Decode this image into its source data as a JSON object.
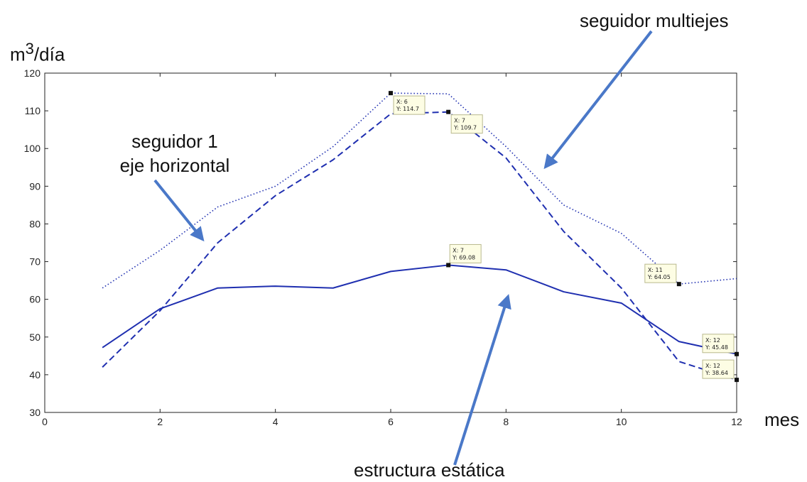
{
  "chart_data": {
    "type": "line",
    "ylabel_base": "m",
    "ylabel_sup": "3",
    "ylabel_rest": "/día",
    "xlabel": "mes",
    "xlim": [
      0,
      12
    ],
    "ylim": [
      30,
      120
    ],
    "xticks": [
      0,
      2,
      4,
      6,
      8,
      10,
      12
    ],
    "yticks": [
      30,
      40,
      50,
      60,
      70,
      80,
      90,
      100,
      110,
      120
    ],
    "grid": false,
    "series": [
      {
        "style": "dotted",
        "x": [
          1,
          2,
          3,
          4,
          5,
          6,
          7,
          8,
          9,
          10,
          11,
          12
        ],
        "y": [
          63,
          73,
          84.5,
          90,
          100.5,
          114.7,
          114.5,
          100.5,
          85,
          77.5,
          64.05,
          65.5
        ]
      },
      {
        "style": "dashed",
        "x": [
          1,
          2,
          3,
          4,
          5,
          6,
          7,
          8,
          9,
          10,
          11,
          12
        ],
        "y": [
          42,
          57,
          75,
          87.5,
          97,
          109.2,
          109.7,
          97.5,
          78,
          63,
          43.5,
          38.64
        ]
      },
      {
        "style": "solid",
        "x": [
          1,
          2,
          3,
          4,
          5,
          6,
          7,
          8,
          9,
          10,
          11,
          12
        ],
        "y": [
          47.2,
          57.5,
          63,
          63.5,
          63,
          67.4,
          69.08,
          67.8,
          62,
          59,
          48.8,
          45.48
        ]
      }
    ],
    "datatips": [
      {
        "x": 6,
        "y": 114.7,
        "line1": "X: 6",
        "line2": "Y: 114.7",
        "side": "right"
      },
      {
        "x": 7,
        "y": 109.7,
        "line1": "X: 7",
        "line2": "Y: 109.7",
        "side": "right"
      },
      {
        "x": 7,
        "y": 69.08,
        "line1": "X: 7",
        "line2": "Y: 69.08",
        "side": "right-up"
      },
      {
        "x": 11,
        "y": 64.05,
        "line1": "X: 11",
        "line2": "Y: 64.05",
        "side": "left-up"
      },
      {
        "x": 12,
        "y": 45.48,
        "line1": "X: 12",
        "line2": "Y: 45.48",
        "side": "left-up"
      },
      {
        "x": 12,
        "y": 38.64,
        "line1": "X: 12",
        "line2": "Y: 38.64",
        "side": "left-up"
      }
    ],
    "annotations": {
      "multiejes": "seguidor multiejes",
      "horizontal_line1": "seguidor 1",
      "horizontal_line2": "eje horizontal",
      "estatica": "estructura estática"
    },
    "colors": {
      "series": "#1f2fb0",
      "arrow": "#4a78c8",
      "datatip_bg": "#fdfde4",
      "datatip_border": "#b9b98e"
    }
  }
}
